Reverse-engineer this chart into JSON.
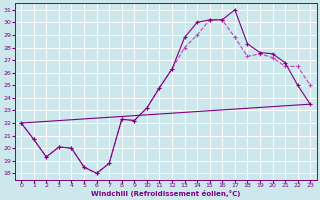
{
  "bg_color": "#cce8ec",
  "line_color_dark": "#800080",
  "line_color_light": "#bb44bb",
  "xlabel": "Windchill (Refroidissement éolien,°C)",
  "xlim": [
    -0.5,
    23.5
  ],
  "ylim": [
    17.5,
    31.5
  ],
  "xticks": [
    0,
    1,
    2,
    3,
    4,
    5,
    6,
    7,
    8,
    9,
    10,
    11,
    12,
    13,
    14,
    15,
    16,
    17,
    18,
    19,
    20,
    21,
    22,
    23
  ],
  "yticks": [
    18,
    19,
    20,
    21,
    22,
    23,
    24,
    25,
    26,
    27,
    28,
    29,
    30,
    31
  ],
  "grid_color": "#ffffff",
  "series1_x": [
    0,
    1,
    2,
    3,
    4,
    5,
    6,
    7,
    8,
    9,
    10,
    11,
    12,
    13,
    14,
    15,
    16,
    17,
    18,
    19,
    20,
    21,
    22,
    23
  ],
  "series1_y": [
    22.0,
    20.7,
    19.3,
    20.1,
    20.0,
    18.5,
    18.0,
    18.8,
    22.3,
    22.2,
    23.2,
    24.8,
    26.3,
    28.8,
    30.0,
    30.2,
    30.2,
    31.0,
    28.3,
    27.6,
    27.5,
    26.8,
    25.0,
    23.5
  ],
  "series2_x": [
    0,
    1,
    2,
    3,
    4,
    5,
    6,
    7,
    8,
    9,
    10,
    11,
    12,
    13,
    14,
    15,
    16,
    17,
    18,
    19,
    20,
    21,
    22,
    23
  ],
  "series2_y": [
    22.0,
    20.7,
    19.3,
    20.1,
    20.0,
    18.5,
    18.0,
    18.8,
    22.3,
    22.2,
    23.2,
    24.8,
    26.3,
    28.0,
    29.0,
    30.2,
    30.2,
    28.8,
    27.3,
    27.5,
    27.2,
    26.5,
    26.5,
    25.0
  ],
  "series3_x": [
    0,
    23
  ],
  "series3_y": [
    22.0,
    23.5
  ],
  "marker": "+"
}
